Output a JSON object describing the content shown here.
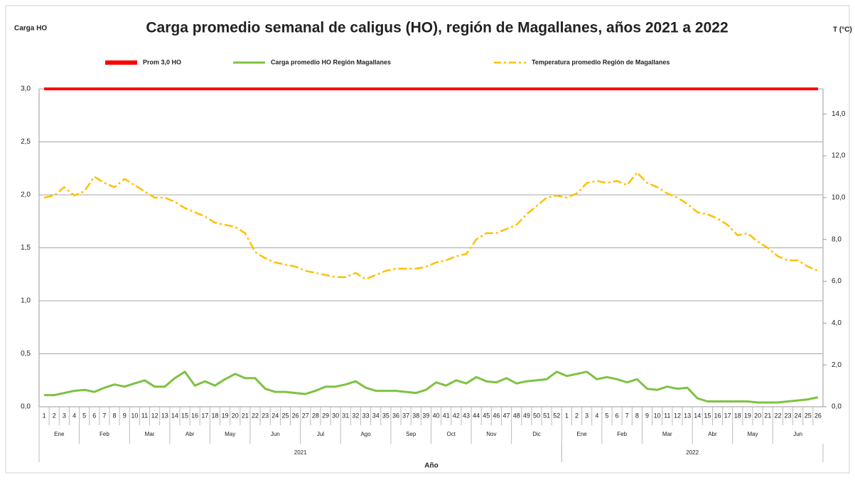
{
  "chart_data": {
    "type": "line",
    "title": "Carga promedio semanal de caligus (HO), región de Magallanes, años 2021 a 2022",
    "y_label": "Carga HO",
    "y2_label": "T (°C)",
    "x_label": "Año",
    "categories": [
      "1",
      "2",
      "3",
      "4",
      "5",
      "6",
      "7",
      "8",
      "9",
      "10",
      "11",
      "12",
      "13",
      "14",
      "15",
      "16",
      "17",
      "18",
      "19",
      "20",
      "21",
      "22",
      "23",
      "24",
      "25",
      "26",
      "27",
      "28",
      "29",
      "30",
      "31",
      "32",
      "33",
      "34",
      "35",
      "36",
      "37",
      "38",
      "39",
      "40",
      "41",
      "42",
      "43",
      "44",
      "45",
      "46",
      "47",
      "48",
      "49",
      "50",
      "51",
      "52",
      "1",
      "2",
      "3",
      "4",
      "5",
      "6",
      "7",
      "8",
      "9",
      "10",
      "11",
      "12",
      "13",
      "14",
      "15",
      "16",
      "17",
      "18",
      "19",
      "20",
      "21",
      "22",
      "23",
      "24",
      "25",
      "26"
    ],
    "month_groups": [
      {
        "label": "Ene",
        "weeks": 4
      },
      {
        "label": "Feb",
        "weeks": 5
      },
      {
        "label": "Mar",
        "weeks": 4
      },
      {
        "label": "Abr",
        "weeks": 4
      },
      {
        "label": "May",
        "weeks": 4
      },
      {
        "label": "Jun",
        "weeks": 5
      },
      {
        "label": "Jul",
        "weeks": 4
      },
      {
        "label": "Ago",
        "weeks": 5
      },
      {
        "label": "Sep",
        "weeks": 4
      },
      {
        "label": "Oct",
        "weeks": 4
      },
      {
        "label": "Nov",
        "weeks": 4
      },
      {
        "label": "Dic",
        "weeks": 5
      },
      {
        "label": "Ene",
        "weeks": 4
      },
      {
        "label": "Feb",
        "weeks": 4
      },
      {
        "label": "Mar",
        "weeks": 5
      },
      {
        "label": "Abr",
        "weeks": 4
      },
      {
        "label": "May",
        "weeks": 4
      },
      {
        "label": "Jun",
        "weeks": 5
      }
    ],
    "year_groups": [
      {
        "label": "2021",
        "weeks": 52
      },
      {
        "label": "2022",
        "weeks": 26
      }
    ],
    "series": [
      {
        "name": "Prom 3,0 HO",
        "color": "#ff0000",
        "width": 4,
        "dash": false,
        "axis": "y",
        "values": [
          3,
          3,
          3,
          3,
          3,
          3,
          3,
          3,
          3,
          3,
          3,
          3,
          3,
          3,
          3,
          3,
          3,
          3,
          3,
          3,
          3,
          3,
          3,
          3,
          3,
          3,
          3,
          3,
          3,
          3,
          3,
          3,
          3,
          3,
          3,
          3,
          3,
          3,
          3,
          3,
          3,
          3,
          3,
          3,
          3,
          3,
          3,
          3,
          3,
          3,
          3,
          3,
          3,
          3,
          3,
          3,
          3,
          3,
          3,
          3,
          3,
          3,
          3,
          3,
          3,
          3,
          3,
          3,
          3,
          3,
          3,
          3,
          3,
          3,
          3,
          3,
          3,
          3
        ]
      },
      {
        "name": "Carga promedio HO Región Magallanes",
        "color": "#7ec242",
        "width": 3,
        "dash": false,
        "axis": "y",
        "values": [
          0.11,
          0.11,
          0.13,
          0.15,
          0.16,
          0.14,
          0.18,
          0.21,
          0.19,
          0.22,
          0.25,
          0.19,
          0.19,
          0.27,
          0.33,
          0.2,
          0.24,
          0.2,
          0.26,
          0.31,
          0.27,
          0.27,
          0.17,
          0.14,
          0.14,
          0.13,
          0.12,
          0.15,
          0.19,
          0.19,
          0.21,
          0.24,
          0.18,
          0.15,
          0.15,
          0.15,
          0.14,
          0.13,
          0.16,
          0.23,
          0.2,
          0.25,
          0.22,
          0.28,
          0.24,
          0.23,
          0.27,
          0.22,
          0.24,
          0.25,
          0.26,
          0.33,
          0.29,
          0.31,
          0.33,
          0.26,
          0.28,
          0.26,
          0.23,
          0.26,
          0.17,
          0.16,
          0.19,
          0.17,
          0.18,
          0.08,
          0.05,
          0.05,
          0.05,
          0.05,
          0.05,
          0.04,
          0.04,
          0.04,
          0.05,
          0.06,
          0.07,
          0.09
        ]
      },
      {
        "name": "Temperatura promedio Región de Magallanes",
        "color": "#ffc000",
        "width": 2.5,
        "dash": true,
        "axis": "y2",
        "values": [
          10.0,
          10.1,
          10.5,
          10.1,
          10.3,
          11.0,
          10.7,
          10.5,
          10.9,
          10.6,
          10.3,
          10.0,
          10.0,
          9.8,
          9.5,
          9.3,
          9.1,
          8.8,
          8.7,
          8.6,
          8.3,
          7.4,
          7.1,
          6.9,
          6.8,
          6.7,
          6.5,
          6.4,
          6.3,
          6.2,
          6.2,
          6.4,
          6.1,
          6.3,
          6.5,
          6.6,
          6.6,
          6.6,
          6.7,
          6.9,
          7.0,
          7.2,
          7.3,
          8.0,
          8.3,
          8.3,
          8.5,
          8.7,
          9.2,
          9.6,
          10.0,
          10.1,
          10.0,
          10.2,
          10.7,
          10.8,
          10.7,
          10.8,
          10.6,
          11.2,
          10.7,
          10.5,
          10.2,
          10.0,
          9.7,
          9.3,
          9.2,
          9.0,
          8.7,
          8.2,
          8.3,
          7.9,
          7.6,
          7.2,
          7.0,
          7.0,
          6.7,
          6.5
        ]
      }
    ],
    "ylim": [
      0,
      3
    ],
    "yticks": [
      {
        "value": 0,
        "label": "0,0"
      },
      {
        "value": 0.5,
        "label": "0,5"
      },
      {
        "value": 1,
        "label": "1,0"
      },
      {
        "value": 1.5,
        "label": "1,5"
      },
      {
        "value": 2,
        "label": "2,0"
      },
      {
        "value": 2.5,
        "label": "2,5"
      },
      {
        "value": 3,
        "label": "3,0"
      }
    ],
    "y2lim": [
      0,
      15.2
    ],
    "y2ticks": [
      {
        "value": 0,
        "label": "0,0"
      },
      {
        "value": 2,
        "label": "2,0"
      },
      {
        "value": 4,
        "label": "4,0"
      },
      {
        "value": 6,
        "label": "6,0"
      },
      {
        "value": 8,
        "label": "8,0"
      },
      {
        "value": 10,
        "label": "10,0"
      },
      {
        "value": 12,
        "label": "12,0"
      },
      {
        "value": 14,
        "label": "14,0"
      }
    ],
    "grid": true
  }
}
